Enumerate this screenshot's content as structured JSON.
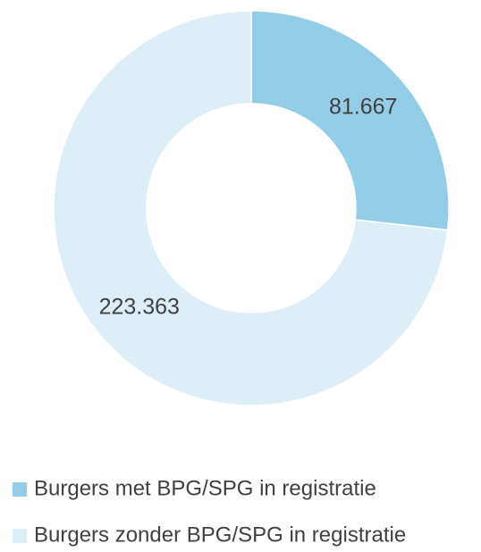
{
  "chart_data": {
    "type": "donut",
    "categories": [
      "Burgers met BPG/SPG in registratie",
      "Burgers zonder BPG/SPG in registratie"
    ],
    "values": [
      81667,
      223363
    ],
    "value_labels": [
      "81.667",
      "223.363"
    ],
    "colors": [
      "#93cde8",
      "#ddeef9"
    ],
    "legend": "bottom"
  }
}
